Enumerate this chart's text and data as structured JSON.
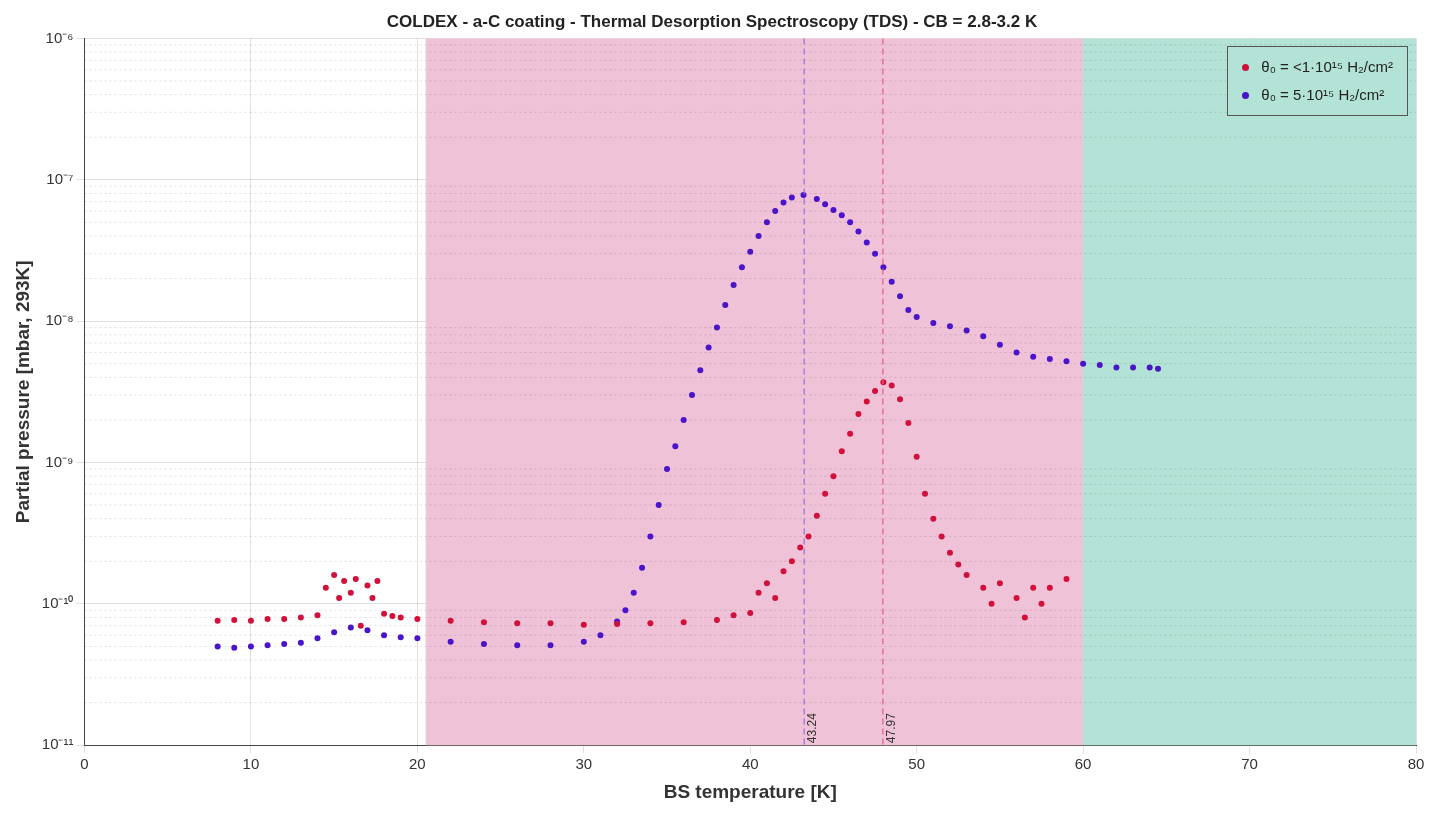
{
  "chart_data": {
    "type": "scatter",
    "title": "COLDEX - a-C coating - Thermal Desorption Spectroscopy (TDS) - CB = 2.8-3.2 K",
    "xlabel": "BS temperature [K]",
    "ylabel": "Partial pressure [mbar, 293K]",
    "xlim": [
      0,
      80
    ],
    "xticks": [
      0,
      10,
      20,
      30,
      40,
      50,
      60,
      70,
      80
    ],
    "ylim": [
      1e-11,
      1e-06
    ],
    "yticks": [
      {
        "value": 1e-11,
        "label": "10⁻¹¹"
      },
      {
        "value": 1e-10,
        "label": "10⁻¹⁰"
      },
      {
        "value": 1e-09,
        "label": "10⁻⁹"
      },
      {
        "value": 1e-08,
        "label": "10⁻⁸"
      },
      {
        "value": 1e-07,
        "label": "10⁻⁷"
      },
      {
        "value": 1e-06,
        "label": "10⁻⁶"
      }
    ],
    "log": "y",
    "grid": true,
    "legend": "top right",
    "marker": "circle",
    "series": [
      {
        "name": "θ₀ = <1·10¹⁵ H₂/cm²",
        "color": "#d2103c",
        "x": [
          8,
          9,
          10,
          11,
          12,
          13,
          14,
          14.5,
          15,
          15.3,
          15.6,
          16,
          16.3,
          16.6,
          17,
          17.3,
          17.6,
          18,
          18.5,
          19,
          20,
          22,
          24,
          26,
          28,
          30,
          32,
          34,
          36,
          38,
          39,
          40,
          40.5,
          41,
          41.5,
          42,
          42.5,
          43,
          43.5,
          44,
          44.5,
          45,
          45.5,
          46,
          46.5,
          47,
          47.5,
          48,
          48.5,
          49,
          49.5,
          50,
          50.5,
          51,
          51.5,
          52,
          52.5,
          53,
          54,
          54.5,
          55,
          56,
          56.5,
          57,
          57.5,
          58,
          59
        ],
        "values": [
          7.6e-11,
          7.7e-11,
          7.6e-11,
          7.8e-11,
          7.8e-11,
          8e-11,
          8.3e-11,
          1.3e-10,
          1.6e-10,
          1.1e-10,
          1.45e-10,
          1.2e-10,
          1.5e-10,
          7e-11,
          1.35e-10,
          1.1e-10,
          1.45e-10,
          8.5e-11,
          8.2e-11,
          8e-11,
          7.8e-11,
          7.6e-11,
          7.4e-11,
          7.3e-11,
          7.3e-11,
          7.1e-11,
          7.2e-11,
          7.3e-11,
          7.4e-11,
          7.7e-11,
          8.3e-11,
          8.6e-11,
          1.2e-10,
          1.4e-10,
          1.1e-10,
          1.7e-10,
          2e-10,
          2.5e-10,
          3e-10,
          4.2e-10,
          6e-10,
          8e-10,
          1.2e-09,
          1.6e-09,
          2.2e-09,
          2.7e-09,
          3.2e-09,
          3.7e-09,
          3.5e-09,
          2.8e-09,
          1.9e-09,
          1.1e-09,
          6e-10,
          4e-10,
          3e-10,
          2.3e-10,
          1.9e-10,
          1.6e-10,
          1.3e-10,
          1e-10,
          1.4e-10,
          1.1e-10,
          8e-11,
          1.3e-10,
          1e-10,
          1.3e-10,
          1.5e-10
        ]
      },
      {
        "name": "θ₀ = 5·10¹⁵ H₂/cm²",
        "color": "#4a14c8",
        "x": [
          8,
          9,
          10,
          11,
          12,
          13,
          14,
          15,
          16,
          17,
          18,
          19,
          20,
          22,
          24,
          26,
          28,
          30,
          31,
          32,
          32.5,
          33,
          33.5,
          34,
          34.5,
          35,
          35.5,
          36,
          36.5,
          37,
          37.5,
          38,
          38.5,
          39,
          39.5,
          40,
          40.5,
          41,
          41.5,
          42,
          42.5,
          43.2,
          44,
          44.5,
          45,
          45.5,
          46,
          46.5,
          47,
          47.5,
          48,
          48.5,
          49,
          49.5,
          50,
          51,
          52,
          53,
          54,
          55,
          56,
          57,
          58,
          59,
          60,
          61,
          62,
          63,
          64,
          64.5
        ],
        "values": [
          5e-11,
          4.9e-11,
          5e-11,
          5.1e-11,
          5.2e-11,
          5.3e-11,
          5.7e-11,
          6.3e-11,
          6.8e-11,
          6.5e-11,
          6e-11,
          5.8e-11,
          5.7e-11,
          5.4e-11,
          5.2e-11,
          5.1e-11,
          5.1e-11,
          5.4e-11,
          6e-11,
          7.5e-11,
          9e-11,
          1.2e-10,
          1.8e-10,
          3e-10,
          5e-10,
          9e-10,
          1.3e-09,
          2e-09,
          3e-09,
          4.5e-09,
          6.5e-09,
          9e-09,
          1.3e-08,
          1.8e-08,
          2.4e-08,
          3.1e-08,
          4e-08,
          5e-08,
          6e-08,
          6.9e-08,
          7.5e-08,
          7.8e-08,
          7.3e-08,
          6.7e-08,
          6.1e-08,
          5.6e-08,
          5e-08,
          4.3e-08,
          3.6e-08,
          3e-08,
          2.4e-08,
          1.9e-08,
          1.5e-08,
          1.2e-08,
          1.07e-08,
          9.7e-09,
          9.2e-09,
          8.6e-09,
          7.8e-09,
          6.8e-09,
          6e-09,
          5.6e-09,
          5.4e-09,
          5.2e-09,
          5e-09,
          4.9e-09,
          4.7e-09,
          4.7e-09,
          4.7e-09,
          4.6e-09
        ]
      }
    ],
    "bands": [
      {
        "axis": "x",
        "from": 20.5,
        "to": 60,
        "color": "#efc2d7"
      },
      {
        "axis": "x",
        "from": 60,
        "to": 80,
        "color": "#b3e3d6"
      }
    ],
    "ref_lines": [
      {
        "axis": "x",
        "value": 43.24,
        "label": "43.24",
        "color": "#9b6be0",
        "line_style": "dashed"
      },
      {
        "axis": "x",
        "value": 47.97,
        "label": "47.97",
        "color": "#e0607c",
        "line_style": "dashed"
      }
    ]
  }
}
